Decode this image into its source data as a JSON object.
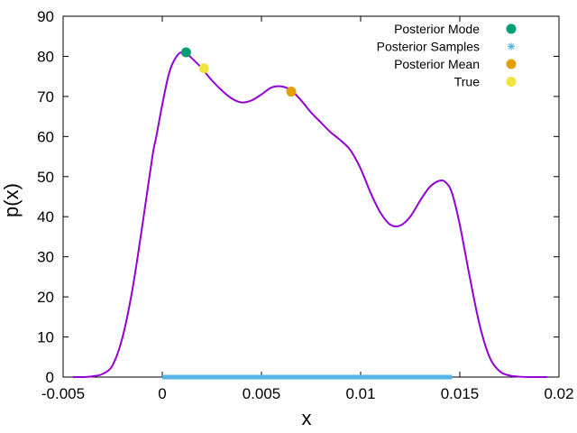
{
  "chart_data": {
    "type": "line",
    "xlabel": "x",
    "ylabel": "p(x)",
    "xlim": [
      -0.005,
      0.02
    ],
    "ylim": [
      0,
      90
    ],
    "x_ticks": [
      -0.005,
      0,
      0.005,
      0.01,
      0.015,
      0.02
    ],
    "x_tick_labels": [
      "-0.005",
      "0",
      "0.005",
      "0.01",
      "0.015",
      "0.02"
    ],
    "y_ticks": [
      0,
      10,
      20,
      30,
      40,
      50,
      60,
      70,
      80,
      90
    ],
    "y_tick_labels": [
      "0",
      "10",
      "20",
      "30",
      "40",
      "50",
      "60",
      "70",
      "80",
      "90"
    ],
    "grid": false,
    "legend_position": "top-right",
    "colors": {
      "density": "#9400d3",
      "mode": "#009e73",
      "samples": "#56b4e9",
      "mean": "#e69f00",
      "true": "#f0e442"
    },
    "density_curve": {
      "x": [
        -0.0045,
        -0.004,
        -0.0035,
        -0.003,
        -0.0025,
        -0.002,
        -0.0015,
        -0.001,
        -0.0005,
        -0.0003,
        0,
        0.0003,
        0.0005,
        0.0008,
        0.001,
        0.0012,
        0.0015,
        0.002,
        0.0025,
        0.003,
        0.0035,
        0.004,
        0.0045,
        0.005,
        0.0055,
        0.006,
        0.0065,
        0.007,
        0.0075,
        0.008,
        0.0085,
        0.009,
        0.0095,
        0.01,
        0.0105,
        0.011,
        0.0115,
        0.012,
        0.0125,
        0.013,
        0.0135,
        0.014,
        0.0143,
        0.0146,
        0.015,
        0.0155,
        0.016,
        0.0165,
        0.017,
        0.0175,
        0.018,
        0.0185,
        0.019,
        0.0194
      ],
      "y": [
        0,
        0,
        0.2,
        0.8,
        3,
        10,
        22,
        38,
        55,
        60,
        68,
        75,
        78,
        80.5,
        81,
        80.8,
        79.5,
        77,
        74,
        71.5,
        69.5,
        68.5,
        69,
        70.5,
        72.2,
        72.5,
        71.5,
        69,
        66,
        63.5,
        61,
        59,
        56.5,
        52,
        46,
        41,
        38,
        37.8,
        40,
        44,
        47.5,
        49,
        48.5,
        46,
        38,
        25,
        13,
        5,
        1.5,
        0.4,
        0.1,
        0,
        0,
        0
      ]
    },
    "samples": {
      "name": "Posterior Samples",
      "x_start": 0,
      "x_end": 0.0146,
      "y": 0
    },
    "points": [
      {
        "name": "Posterior Mode",
        "x": 0.0012,
        "y": 81
      },
      {
        "name": "True",
        "x": 0.0021,
        "y": 77
      },
      {
        "name": "Posterior Mean",
        "x": 0.0065,
        "y": 71.2
      }
    ],
    "legend": [
      {
        "label": "Posterior Mode",
        "marker": "circle",
        "color": "#009e73"
      },
      {
        "label": "Posterior Samples",
        "marker": "star",
        "color": "#56b4e9"
      },
      {
        "label": "Posterior Mean",
        "marker": "circle",
        "color": "#e69f00"
      },
      {
        "label": "True",
        "marker": "circle",
        "color": "#f0e442"
      }
    ]
  }
}
